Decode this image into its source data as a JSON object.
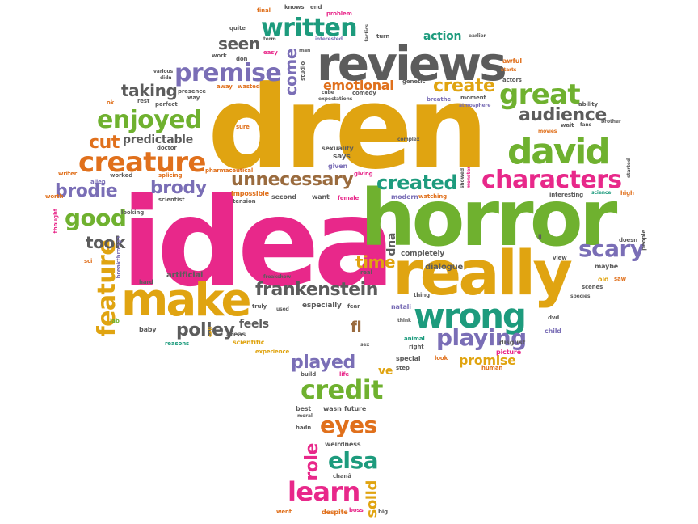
{
  "title": "",
  "palette": {
    "gold": "#e0a411",
    "pink": "#e8288a",
    "green": "#6fb12f",
    "teal": "#1d9b7d",
    "gray": "#5c5c5c",
    "purple": "#7a6eb6",
    "orange": "#e0701c",
    "brown": "#9a6b3e"
  },
  "words": [
    {
      "text": "dren",
      "weight": 100
    },
    {
      "text": "idea",
      "weight": 95
    },
    {
      "text": "horror",
      "weight": 82
    },
    {
      "text": "reviews",
      "weight": 58
    },
    {
      "text": "really",
      "weight": 58
    },
    {
      "text": "make",
      "weight": 48
    },
    {
      "text": "wrong",
      "weight": 40
    },
    {
      "text": "david",
      "weight": 40
    },
    {
      "text": "great",
      "weight": 34
    },
    {
      "text": "characters",
      "weight": 32
    },
    {
      "text": "creature",
      "weight": 32
    },
    {
      "text": "written",
      "weight": 30
    },
    {
      "text": "premise",
      "weight": 30
    },
    {
      "text": "enjoyed",
      "weight": 30
    },
    {
      "text": "feature",
      "weight": 30
    },
    {
      "text": "credit",
      "weight": 30
    },
    {
      "text": "learn",
      "weight": 30
    },
    {
      "text": "good",
      "weight": 28
    },
    {
      "text": "scary",
      "weight": 28
    },
    {
      "text": "playing",
      "weight": 28
    },
    {
      "text": "eyes",
      "weight": 28
    },
    {
      "text": "elsa",
      "weight": 28
    },
    {
      "text": "frankenstein",
      "weight": 26
    },
    {
      "text": "unnecessary",
      "weight": 24
    },
    {
      "text": "created",
      "weight": 24
    },
    {
      "text": "audience",
      "weight": 24
    },
    {
      "text": "create",
      "weight": 22
    },
    {
      "text": "brodie",
      "weight": 22
    },
    {
      "text": "brody",
      "weight": 22
    },
    {
      "text": "polley",
      "weight": 22
    },
    {
      "text": "played",
      "weight": 22
    },
    {
      "text": "cut",
      "weight": 22
    },
    {
      "text": "time",
      "weight": 22
    },
    {
      "text": "taking",
      "weight": 20
    },
    {
      "text": "seen",
      "weight": 20
    },
    {
      "text": "come",
      "weight": 20
    },
    {
      "text": "took",
      "weight": 20
    },
    {
      "text": "emotional",
      "weight": 18
    },
    {
      "text": "role",
      "weight": 18
    },
    {
      "text": "solid",
      "weight": 18
    },
    {
      "text": "action",
      "weight": 16
    },
    {
      "text": "feels",
      "weight": 16
    },
    {
      "text": "promise",
      "weight": 16
    },
    {
      "text": "fi",
      "weight": 16
    },
    {
      "text": "dna",
      "weight": 14
    },
    {
      "text": "predictable",
      "weight": 14
    },
    {
      "text": "ve",
      "weight": 14
    },
    {
      "text": "dialogue",
      "weight": 10
    },
    {
      "text": "completely",
      "weight": 10
    },
    {
      "text": "artificial",
      "weight": 10
    },
    {
      "text": "especially",
      "weight": 10
    },
    {
      "text": "pharmaceutical",
      "weight": 8
    },
    {
      "text": "sexuality",
      "weight": 9
    },
    {
      "text": "says",
      "weight": 10
    },
    {
      "text": "given",
      "weight": 9
    },
    {
      "text": "giving",
      "weight": 8
    },
    {
      "text": "impossible",
      "weight": 9
    },
    {
      "text": "second",
      "weight": 9
    },
    {
      "text": "want",
      "weight": 9
    },
    {
      "text": "female",
      "weight": 8
    },
    {
      "text": "modern",
      "weight": 9
    },
    {
      "text": "watching",
      "weight": 8
    },
    {
      "text": "scientist",
      "weight": 8
    },
    {
      "text": "tension",
      "weight": 8
    },
    {
      "text": "looking",
      "weight": 8
    },
    {
      "text": "alien",
      "weight": 8
    },
    {
      "text": "worked",
      "weight": 8
    },
    {
      "text": "splicing",
      "weight": 8
    },
    {
      "text": "writer",
      "weight": 8
    },
    {
      "text": "worth",
      "weight": 8
    },
    {
      "text": "thought",
      "weight": 8
    },
    {
      "text": "breakthrough",
      "weight": 8
    },
    {
      "text": "sci",
      "weight": 8
    },
    {
      "text": "hard",
      "weight": 8
    },
    {
      "text": "lab",
      "weight": 8
    },
    {
      "text": "baby",
      "weight": 9
    },
    {
      "text": "sell",
      "weight": 8
    },
    {
      "text": "areas",
      "weight": 9
    },
    {
      "text": "scientific",
      "weight": 9
    },
    {
      "text": "reasons",
      "weight": 8
    },
    {
      "text": "experience",
      "weight": 8
    },
    {
      "text": "truly",
      "weight": 8
    },
    {
      "text": "used",
      "weight": 7
    },
    {
      "text": "freakshow",
      "weight": 7
    },
    {
      "text": "real",
      "weight": 8
    },
    {
      "text": "fear",
      "weight": 8
    },
    {
      "text": "natali",
      "weight": 9
    },
    {
      "text": "thing",
      "weight": 8
    },
    {
      "text": "think",
      "weight": 7
    },
    {
      "text": "animal",
      "weight": 8
    },
    {
      "text": "right",
      "weight": 8
    },
    {
      "text": "sex",
      "weight": 7
    },
    {
      "text": "special",
      "weight": 9
    },
    {
      "text": "step",
      "weight": 8
    },
    {
      "text": "build",
      "weight": 8
    },
    {
      "text": "life",
      "weight": 8
    },
    {
      "text": "look",
      "weight": 8
    },
    {
      "text": "human",
      "weight": 8
    },
    {
      "text": "picture",
      "weight": 9
    },
    {
      "text": "disgust",
      "weight": 9
    },
    {
      "text": "child",
      "weight": 9
    },
    {
      "text": "dvd",
      "weight": 8
    },
    {
      "text": "view",
      "weight": 8
    },
    {
      "text": "maybe",
      "weight": 9
    },
    {
      "text": "scenes",
      "weight": 8
    },
    {
      "text": "old",
      "weight": 9
    },
    {
      "text": "saw",
      "weight": 8
    },
    {
      "text": "species",
      "weight": 7
    },
    {
      "text": "doesn",
      "weight": 8
    },
    {
      "text": "people",
      "weight": 8
    },
    {
      "text": "ll",
      "weight": 8
    },
    {
      "text": "interesting",
      "weight": 8
    },
    {
      "text": "science",
      "weight": 7
    },
    {
      "text": "high",
      "weight": 8
    },
    {
      "text": "started",
      "weight": 7
    },
    {
      "text": "showed",
      "weight": 7
    },
    {
      "text": "monster",
      "weight": 7
    },
    {
      "text": "wait",
      "weight": 8
    },
    {
      "text": "fans",
      "weight": 7
    },
    {
      "text": "movies",
      "weight": 7
    },
    {
      "text": "brother",
      "weight": 7
    },
    {
      "text": "ability",
      "weight": 8
    },
    {
      "text": "actors",
      "weight": 8
    },
    {
      "text": "awful",
      "weight": 8
    },
    {
      "text": "starts",
      "weight": 7
    },
    {
      "text": "moment",
      "weight": 7
    },
    {
      "text": "atmosphere",
      "weight": 7
    },
    {
      "text": "breathe",
      "weight": 8
    },
    {
      "text": "genetic",
      "weight": 8
    },
    {
      "text": "earlier",
      "weight": 7
    },
    {
      "text": "complex",
      "weight": 7
    },
    {
      "text": "comedy",
      "weight": 8
    },
    {
      "text": "expectations",
      "weight": 7
    },
    {
      "text": "cube",
      "weight": 7
    },
    {
      "text": "studio",
      "weight": 8
    },
    {
      "text": "man",
      "weight": 7
    },
    {
      "text": "easy",
      "weight": 7
    },
    {
      "text": "interested",
      "weight": 7
    },
    {
      "text": "term",
      "weight": 7
    },
    {
      "text": "turn",
      "weight": 7
    },
    {
      "text": "factics",
      "weight": 7
    },
    {
      "text": "problem",
      "weight": 7
    },
    {
      "text": "knows",
      "weight": 7
    },
    {
      "text": "end",
      "weight": 7
    },
    {
      "text": "final",
      "weight": 7
    },
    {
      "text": "quite",
      "weight": 7
    },
    {
      "text": "work",
      "weight": 7
    },
    {
      "text": "don",
      "weight": 7
    },
    {
      "text": "way",
      "weight": 8
    },
    {
      "text": "away",
      "weight": 8
    },
    {
      "text": "wasted",
      "weight": 8
    },
    {
      "text": "presence",
      "weight": 8
    },
    {
      "text": "various",
      "weight": 7
    },
    {
      "text": "didn",
      "weight": 7
    },
    {
      "text": "ok",
      "weight": 7
    },
    {
      "text": "rest",
      "weight": 7
    },
    {
      "text": "perfect",
      "weight": 8
    },
    {
      "text": "sure",
      "weight": 7
    },
    {
      "text": "doctor",
      "weight": 8
    },
    {
      "text": "best",
      "weight": 8
    },
    {
      "text": "moral",
      "weight": 7
    },
    {
      "text": "wasn",
      "weight": 8
    },
    {
      "text": "future",
      "weight": 8
    },
    {
      "text": "hadn",
      "weight": 7
    },
    {
      "text": "weirdness",
      "weight": 8
    },
    {
      "text": "chanâ",
      "weight": 7
    },
    {
      "text": "went",
      "weight": 8
    },
    {
      "text": "despite",
      "weight": 8
    },
    {
      "text": "boss",
      "weight": 8
    },
    {
      "text": "big",
      "weight": 8
    }
  ]
}
